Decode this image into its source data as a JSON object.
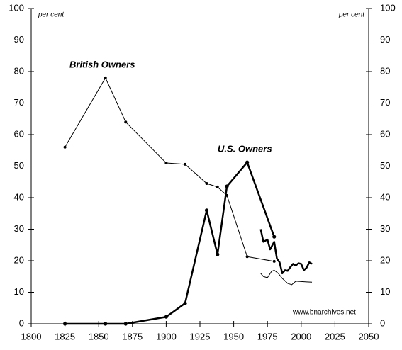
{
  "chart_data": {
    "type": "line",
    "ylabel": "per cent",
    "y2label": "per cent",
    "annotations": [
      "www.bnarchives.net"
    ],
    "xlim": [
      1800,
      2050
    ],
    "xticks": [
      1800,
      1825,
      1850,
      1875,
      1900,
      1925,
      1950,
      1975,
      2000,
      2025,
      2050
    ],
    "ylim": [
      0,
      100
    ],
    "yticks": [
      0,
      10,
      20,
      30,
      40,
      50,
      60,
      70,
      80,
      90,
      100
    ],
    "y2lim": [
      0,
      100
    ],
    "y2ticks": [
      0,
      10,
      20,
      30,
      40,
      50,
      60,
      70,
      80,
      90,
      100
    ],
    "series": [
      {
        "name": "British Owners",
        "color": "#000000",
        "line_width": 1,
        "markers": true,
        "x": [
          1825,
          1855,
          1870,
          1900,
          1914,
          1930,
          1938,
          1945,
          1960,
          1980
        ],
        "values": [
          56,
          78,
          64,
          51,
          50.6,
          44.5,
          43.4,
          40.7,
          21.3,
          19.8
        ]
      },
      {
        "name": "U.S. Owners",
        "color": "#000000",
        "line_width": 2.5,
        "markers": true,
        "x": [
          1825,
          1855,
          1870,
          1900,
          1914,
          1930,
          1938,
          1945,
          1960,
          1980
        ],
        "values": [
          0,
          0,
          0,
          2.2,
          6.5,
          36,
          22,
          43.6,
          51.2,
          27.6
        ]
      },
      {
        "color": "#000000",
        "line_width": 2.5,
        "markers": false,
        "x": [
          1970,
          1972,
          1975,
          1977,
          1980,
          1982,
          1984,
          1986,
          1988,
          1990,
          1992,
          1994,
          1996,
          1998,
          2000,
          2002,
          2004,
          2006,
          2008
        ],
        "values": [
          30,
          26,
          26.7,
          23.6,
          26,
          20.7,
          19.5,
          16,
          17,
          16.8,
          18,
          19,
          18.5,
          19.2,
          19,
          17,
          17.8,
          19.5,
          19
        ]
      },
      {
        "color": "#000000",
        "line_width": 1,
        "markers": false,
        "x": [
          1970,
          1972,
          1975,
          1978,
          1980,
          1983,
          1986,
          1990,
          1993,
          1996,
          2000,
          2004,
          2008
        ],
        "values": [
          16,
          15,
          14.6,
          16.6,
          17,
          16,
          14.4,
          12.8,
          12.4,
          13.5,
          13.4,
          13.3,
          13.2
        ]
      }
    ]
  }
}
